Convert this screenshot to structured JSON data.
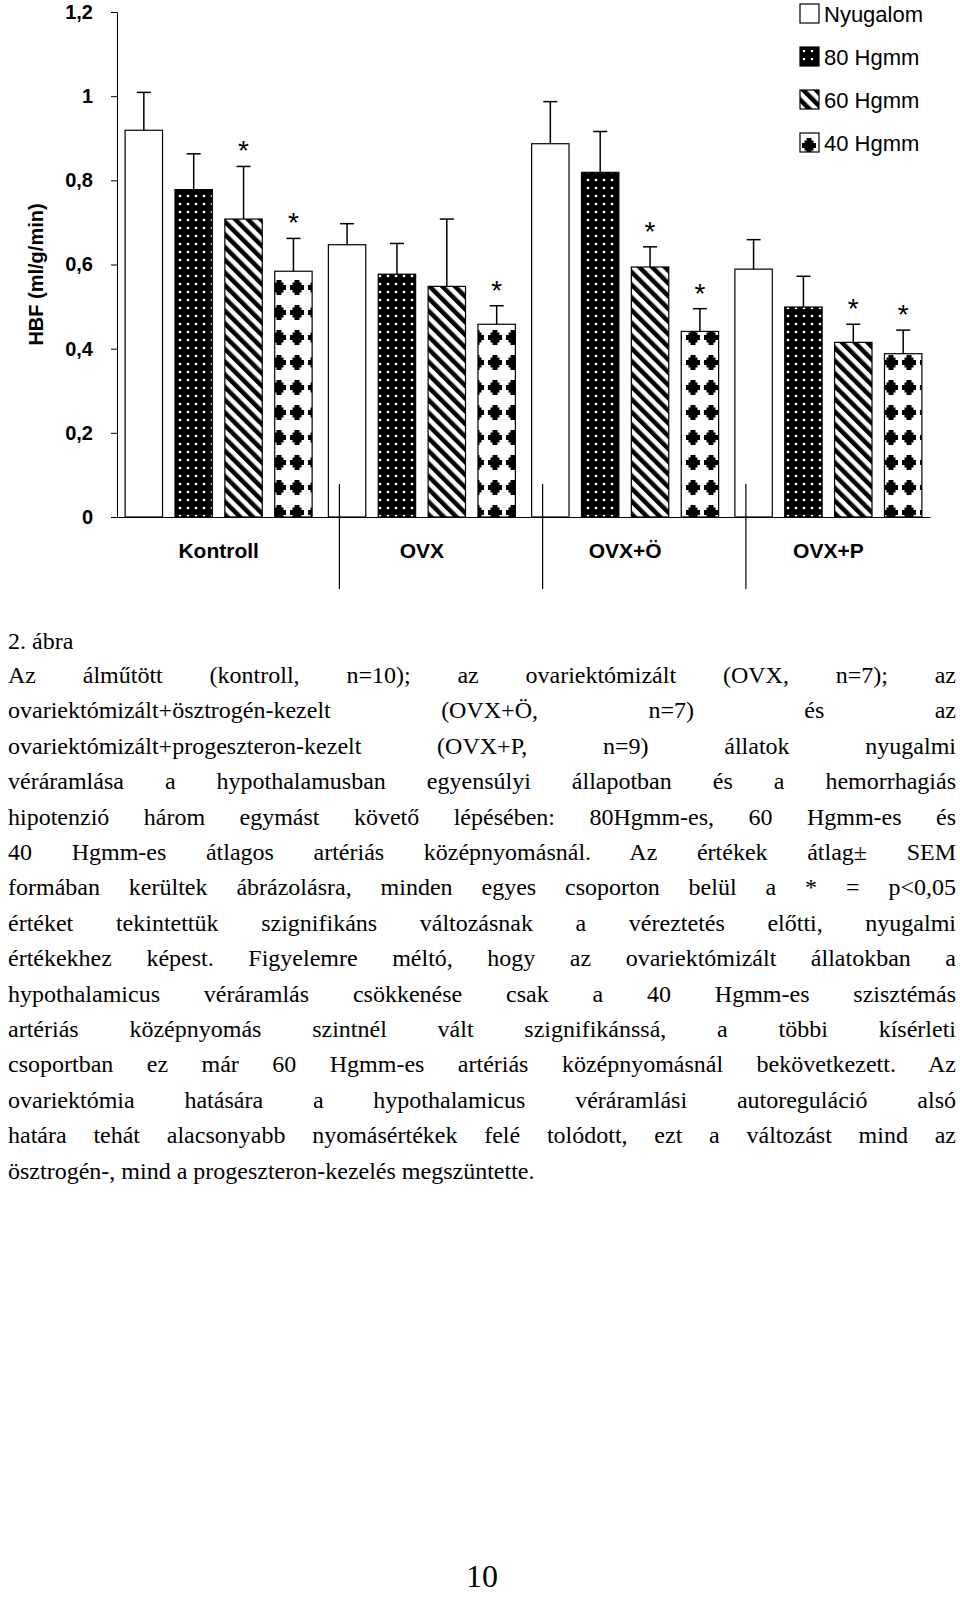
{
  "chart_data": {
    "type": "bar",
    "y_label": "HBF (ml/g/min)",
    "categories": [
      "Kontroll",
      "OVX",
      "OVX+Ö",
      "OVX+P"
    ],
    "series": [
      {
        "name": "Nyugalom",
        "color": "#ffffff",
        "values": [
          0.919,
          0.647,
          0.887,
          0.589
        ],
        "errors": [
          0.09,
          0.05,
          0.1,
          0.07
        ],
        "significance": [
          null,
          null,
          null,
          null
        ]
      },
      {
        "name": "80 Hgmm",
        "color": "#000000",
        "values": [
          0.778,
          0.577,
          0.819,
          0.499
        ],
        "errors": [
          0.085,
          0.073,
          0.097,
          0.073
        ],
        "significance": [
          null,
          null,
          null,
          null
        ]
      },
      {
        "name": "60 Hgmm",
        "color": "#000000",
        "values": [
          0.708,
          0.548,
          0.594,
          0.415
        ],
        "errors": [
          0.125,
          0.16,
          0.048,
          0.043
        ],
        "significance": [
          "*",
          null,
          "*",
          "*"
        ]
      },
      {
        "name": "40 Hgmm",
        "color": "#000000",
        "values": [
          0.584,
          0.458,
          0.441,
          0.388
        ],
        "errors": [
          0.078,
          0.044,
          0.054,
          0.056
        ],
        "significance": [
          "*",
          "*",
          "*",
          "*"
        ]
      }
    ],
    "ylim": [
      0,
      1.2
    ],
    "yticks": [
      0,
      {
        "value": 0.2,
        "label": "0,2"
      },
      {
        "value": 0.4,
        "label": "0,4"
      },
      {
        "value": 0.6,
        "label": "0,6"
      },
      {
        "value": 0.8,
        "label": "0,8"
      },
      1,
      {
        "value": 1.2,
        "label": "1,2"
      }
    ],
    "legend": "top right",
    "grid": false
  },
  "caption": {
    "label": "2. ábra",
    "lines": [
      "Az álműtött (kontroll, n=10); az ovariektómizált (OVX, n=7); az",
      "ovariektómizált+ösztrogén-kezelt (OVX+Ö, n=7) és az",
      "ovariektómizált+progeszteron-kezelt (OVX+P, n=9) állatok nyugalmi",
      "véráramlása a hypothalamusban egyensúlyi állapotban és a hemorrhagiás",
      "hipotenzió három egymást követő lépésében: 80Hgmm-es, 60 Hgmm-es és",
      "40 Hgmm-es átlagos artériás középnyomásnál. Az értékek átlag± SEM",
      "formában kerültek ábrázolásra, minden egyes csoporton belül a * = p<0,05",
      "értéket tekintettük szignifikáns változásnak a véreztetés előtti, nyugalmi",
      "értékekhez képest. Figyelemre méltó, hogy az ovariektómizált állatokban a",
      "hypothalamicus véráramlás csökkenése csak a 40 Hgmm-es szisztémás",
      "artériás középnyomás szintnél vált szignifikánssá, a többi kísérleti",
      "csoportban ez már 60 Hgmm-es artériás középnyomásnál bekövetkezett. Az",
      "ovariektómia hatására a hypothalamicus véráramlási autoreguláció alsó",
      "határa tehát alacsonyabb nyomásértékek felé tolódott, ezt a változást mind az",
      "ösztrogén-, mind a progeszteron-kezelés megszüntette."
    ]
  },
  "page_number": "10"
}
